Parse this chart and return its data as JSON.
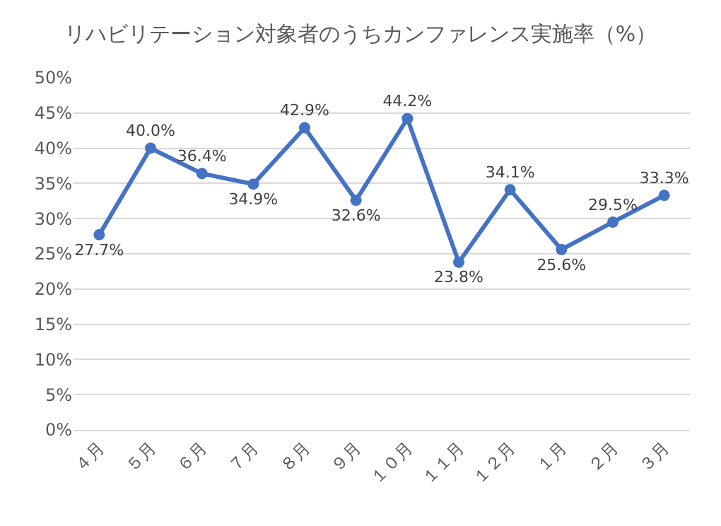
{
  "chart_data": {
    "type": "line",
    "title": "リハビリテーション対象者のうちカンファレンス実施率（%）",
    "categories": [
      "４月",
      "５月",
      "６月",
      "７月",
      "８月",
      "９月",
      "１０月",
      "１１月",
      "１２月",
      "１月",
      "２月",
      "３月"
    ],
    "series": [
      {
        "color": "#4472c4",
        "values": [
          27.7,
          40.0,
          36.4,
          34.9,
          42.9,
          32.6,
          44.2,
          23.8,
          34.1,
          25.6,
          29.5,
          33.3
        ],
        "value_labels": [
          "27.7%",
          "40.0%",
          "36.4%",
          "34.9%",
          "42.9%",
          "32.6%",
          "44.2%",
          "23.8%",
          "34.1%",
          "25.6%",
          "29.5%",
          "33.3%"
        ]
      }
    ],
    "ylim": [
      0,
      50
    ],
    "yticks": [
      {
        "value": 0,
        "label": "0%"
      },
      {
        "value": 5,
        "label": "5%"
      },
      {
        "value": 10,
        "label": "10%"
      },
      {
        "value": 15,
        "label": "15%"
      },
      {
        "value": 20,
        "label": "20%"
      },
      {
        "value": 25,
        "label": "25%"
      },
      {
        "value": 30,
        "label": "30%"
      },
      {
        "value": 35,
        "label": "35%"
      },
      {
        "value": 40,
        "label": "40%"
      },
      {
        "value": 45,
        "label": "45%"
      },
      {
        "value": 50,
        "label": "50%"
      }
    ],
    "grid": "y",
    "marker": "circle",
    "line_style": "solid"
  }
}
